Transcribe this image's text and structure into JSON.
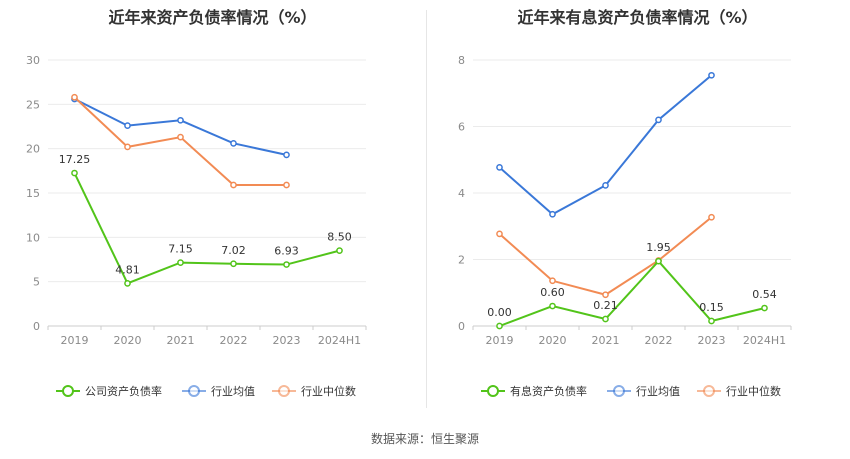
{
  "source": "数据来源：恒生聚源",
  "chart_data": [
    {
      "type": "line",
      "title": "近年来资产负债率情况（%）",
      "categories": [
        "2019",
        "2020",
        "2021",
        "2022",
        "2023",
        "2024H1"
      ],
      "ylim": [
        0,
        30
      ],
      "yticks": [
        0,
        5,
        10,
        15,
        20,
        25,
        30
      ],
      "grid": true,
      "legend_position": "bottom",
      "series": [
        {
          "name": "公司资产负债率",
          "color": "#52c41a",
          "values": [
            17.25,
            4.81,
            7.15,
            7.02,
            6.93,
            8.5
          ],
          "labels": [
            "17.25",
            "4.81",
            "7.15",
            "7.02",
            "6.93",
            "8.50"
          ]
        },
        {
          "name": "行业均值",
          "color": "#3a78d8",
          "values": [
            25.6,
            22.6,
            23.2,
            20.6,
            19.3,
            null
          ]
        },
        {
          "name": "行业中位数",
          "color": "#f28b54",
          "values": [
            25.8,
            20.2,
            21.3,
            15.9,
            15.9,
            null
          ]
        }
      ]
    },
    {
      "type": "line",
      "title": "近年来有息资产负债率情况（%）",
      "categories": [
        "2019",
        "2020",
        "2021",
        "2022",
        "2023",
        "2024H1"
      ],
      "ylim": [
        0,
        8
      ],
      "yticks": [
        0,
        2,
        4,
        6,
        8
      ],
      "grid": true,
      "legend_position": "bottom",
      "series": [
        {
          "name": "有息资产负债率",
          "color": "#52c41a",
          "values": [
            0.0,
            0.6,
            0.21,
            1.95,
            0.15,
            0.54
          ],
          "labels": [
            "0.00",
            "0.60",
            "0.21",
            "1.95",
            "0.15",
            "0.54"
          ]
        },
        {
          "name": "行业均值",
          "color": "#3a78d8",
          "values": [
            4.77,
            3.36,
            4.23,
            6.2,
            7.54,
            null
          ]
        },
        {
          "name": "行业中位数",
          "color": "#f28b54",
          "values": [
            2.77,
            1.36,
            0.94,
            1.97,
            3.27,
            null
          ]
        }
      ]
    }
  ]
}
